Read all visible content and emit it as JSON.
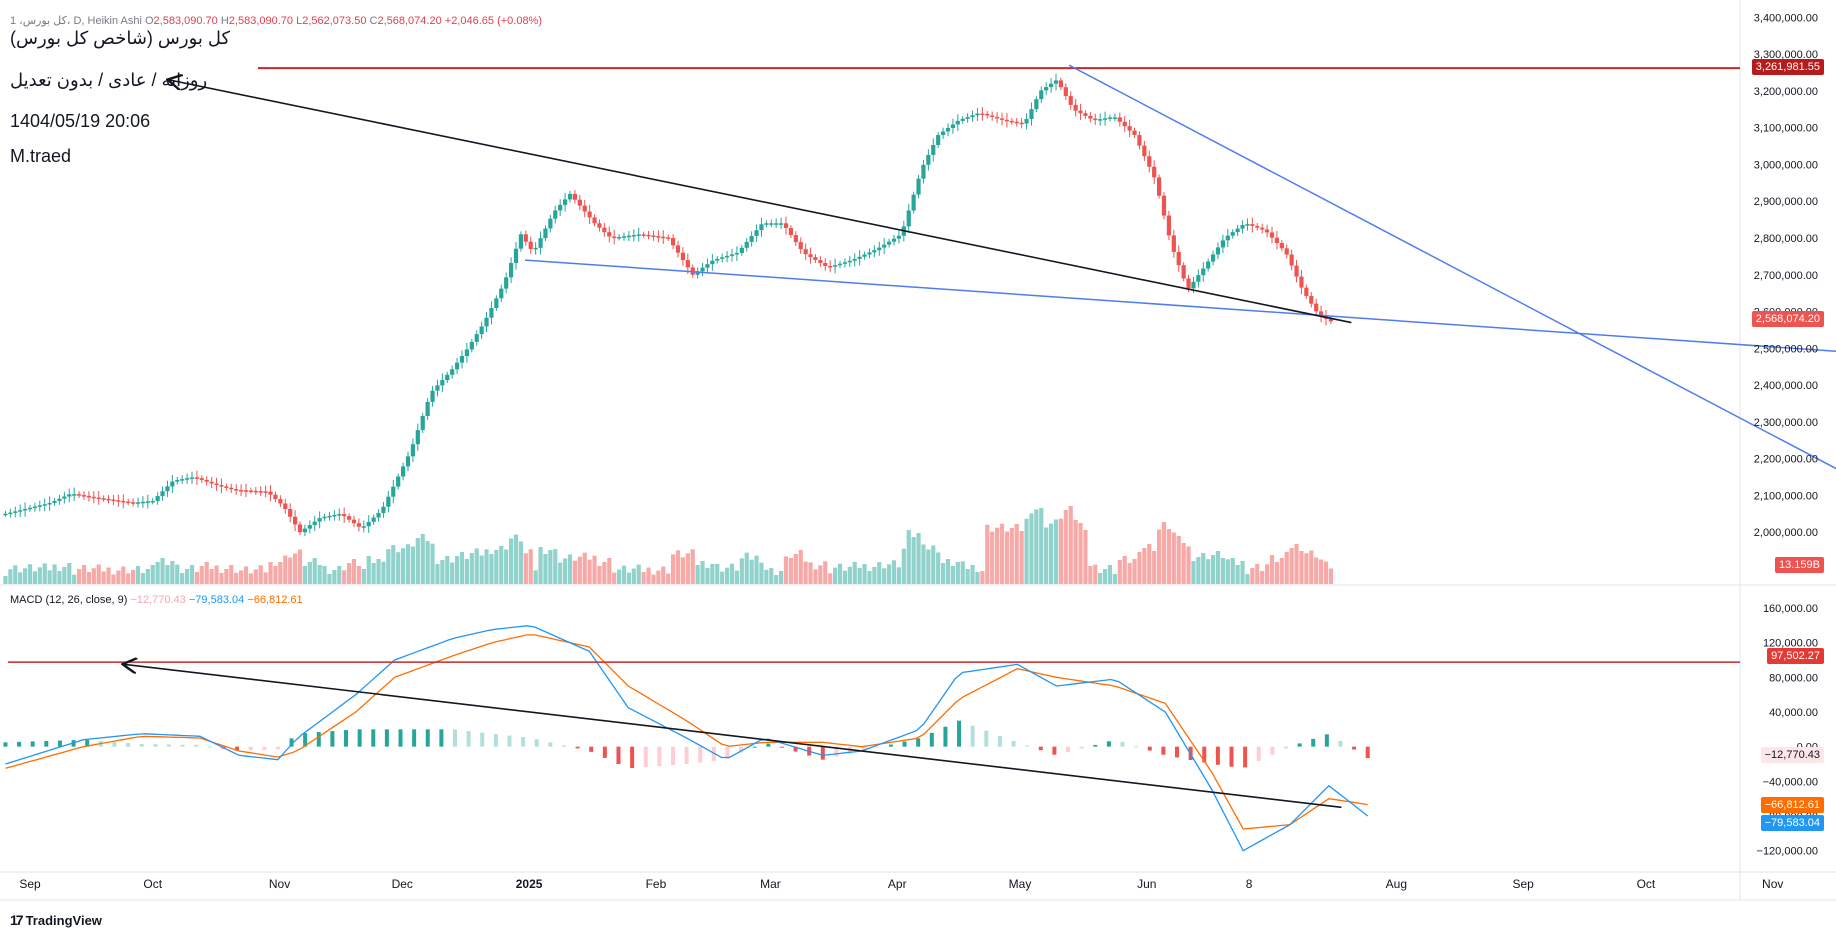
{
  "header": {
    "symbol_line": "1 ،کل بورس، D, Heikin Ashi",
    "open_label": "O",
    "open": "2,583,090.70",
    "high_label": "H",
    "high": "2,583,090.70",
    "low_label": "L",
    "low": "2,562,073.50",
    "close_label": "C",
    "close": "2,568,074.20",
    "change": "+2,046.65 (+0.08%)"
  },
  "annotations": {
    "title": "کل بورس (شاخص کل بورس)",
    "subtitle": "روزانه / عادی / بدون تعدیل",
    "datetime": "1404/05/19 20:06",
    "author": "M.traed"
  },
  "macd_legend": {
    "label": "MACD (12, 26, close, 9)",
    "histogram": "−12,770.43",
    "macd": "−79,583.04",
    "signal": "−66,812.61"
  },
  "badges": {
    "resistance": "3,261,981.55",
    "last_price": "2,568,074.20",
    "volume": "13.159B",
    "macd_level": "97,502.27",
    "hist_value": "−12,770.43",
    "signal_value": "−66,812.61",
    "macd_value": "−79,583.04"
  },
  "brand": "TradingView",
  "colors": {
    "up": "#26a69a",
    "down": "#ef5350",
    "macd": "#2196f3",
    "signal": "#ff6d00",
    "trendline": "#4f7df0",
    "level": "#c62828"
  },
  "chart_data": [
    {
      "type": "candlestick",
      "style": "Heikin Ashi",
      "x_ticks": [
        "Sep",
        "Oct",
        "Nov",
        "Dec",
        "2025",
        "Feb",
        "Mar",
        "Apr",
        "May",
        "Jun",
        "8",
        "Aug",
        "Sep",
        "Oct",
        "Nov"
      ],
      "y_ticks": [
        3400000,
        3300000,
        3200000,
        3100000,
        3000000,
        2900000,
        2800000,
        2700000,
        2600000,
        2500000,
        2400000,
        2300000,
        2200000,
        2100000,
        2000000
      ],
      "ylim": [
        1870000,
        3420000
      ],
      "anchor_closes": [
        [
          "Aug-25",
          2050000
        ],
        [
          "Sep-5",
          2080000
        ],
        [
          "Sep-10",
          2105000
        ],
        [
          "Sep-15",
          2095000
        ],
        [
          "Sep-25",
          2080000
        ],
        [
          "Sep-30",
          2085000
        ],
        [
          "Oct-5",
          2140000
        ],
        [
          "Oct-10",
          2150000
        ],
        [
          "Oct-15",
          2130000
        ],
        [
          "Oct-20",
          2115000
        ],
        [
          "Oct-28",
          2110000
        ],
        [
          "Nov-1",
          2070000
        ],
        [
          "Nov-5",
          2000000
        ],
        [
          "Nov-10",
          2040000
        ],
        [
          "Nov-15",
          2050000
        ],
        [
          "Nov-20",
          2010000
        ],
        [
          "Nov-25",
          2060000
        ],
        [
          "Dec-2",
          2220000
        ],
        [
          "Dec-7",
          2380000
        ],
        [
          "Dec-12",
          2440000
        ],
        [
          "Dec-16",
          2500000
        ],
        [
          "Dec-20",
          2570000
        ],
        [
          "Dec-25",
          2680000
        ],
        [
          "Dec-29",
          2810000
        ],
        [
          "Jan-1",
          2760000
        ],
        [
          "Jan-6",
          2870000
        ],
        [
          "Jan-10",
          2920000
        ],
        [
          "Jan-16",
          2840000
        ],
        [
          "Jan-20",
          2800000
        ],
        [
          "Jan-27",
          2810000
        ],
        [
          "Feb-3",
          2800000
        ],
        [
          "Feb-9",
          2700000
        ],
        [
          "Feb-14",
          2740000
        ],
        [
          "Feb-20",
          2760000
        ],
        [
          "Feb-26",
          2840000
        ],
        [
          "Mar-3",
          2840000
        ],
        [
          "Mar-8",
          2760000
        ],
        [
          "Mar-14",
          2720000
        ],
        [
          "Mar-20",
          2740000
        ],
        [
          "Mar-26",
          2770000
        ],
        [
          "Apr-1",
          2810000
        ],
        [
          "Apr-6",
          2990000
        ],
        [
          "Apr-10",
          3080000
        ],
        [
          "Apr-15",
          3120000
        ],
        [
          "Apr-20",
          3140000
        ],
        [
          "Apr-26",
          3120000
        ],
        [
          "May-1",
          3110000
        ],
        [
          "May-5",
          3200000
        ],
        [
          "May-9",
          3230000
        ],
        [
          "May-13",
          3150000
        ],
        [
          "May-18",
          3120000
        ],
        [
          "May-23",
          3130000
        ],
        [
          "May-28",
          3080000
        ],
        [
          "Jun-2",
          2960000
        ],
        [
          "Jun-6",
          2780000
        ],
        [
          "Jun-10",
          2660000
        ],
        [
          "Jun-14",
          2720000
        ],
        [
          "Jun-19",
          2800000
        ],
        [
          "Jun-24",
          2840000
        ],
        [
          "Jun-29",
          2820000
        ],
        [
          "Jul-4",
          2760000
        ],
        [
          "Jul-8",
          2660000
        ],
        [
          "Jul-12",
          2590000
        ],
        [
          "Jul-16",
          2568074
        ]
      ],
      "last_close": 2568074.2,
      "resistance_level": 3261981.55,
      "trendlines": [
        {
          "from": [
            "Dec-30",
            2740000
          ],
          "to": [
            "Nov-18",
            2490000
          ]
        },
        {
          "from": [
            "May-12",
            3270000
          ],
          "to": [
            "Nov-16",
            2170000
          ]
        }
      ],
      "arrow": {
        "from": [
          "Jul-20",
          2570000
        ],
        "to": [
          "Oct-4",
          3230000
        ]
      }
    },
    {
      "type": "bar",
      "title": "Volume",
      "last_value": "13.159B"
    },
    {
      "type": "line",
      "title": "MACD (12, 26, close, 9)",
      "y_ticks": [
        160000,
        120000,
        80000,
        40000,
        0,
        -40000,
        -80000,
        -120000
      ],
      "ylim": [
        -140000,
        175000
      ],
      "level": 97502.27,
      "series": [
        {
          "name": "MACD",
          "last": -79583.04,
          "anchors": [
            [
              0,
              -20000
            ],
            [
              20,
              8000
            ],
            [
              35,
              15000
            ],
            [
              50,
              12000
            ],
            [
              60,
              -10000
            ],
            [
              70,
              -15000
            ],
            [
              75,
              10000
            ],
            [
              90,
              60000
            ],
            [
              100,
              100000
            ],
            [
              115,
              125000
            ],
            [
              125,
              135000
            ],
            [
              135,
              140000
            ],
            [
              150,
              110000
            ],
            [
              160,
              45000
            ],
            [
              175,
              10000
            ],
            [
              185,
              -15000
            ],
            [
              195,
              10000
            ],
            [
              210,
              -10000
            ],
            [
              220,
              -5000
            ],
            [
              235,
              20000
            ],
            [
              245,
              85000
            ],
            [
              260,
              95000
            ],
            [
              270,
              70000
            ],
            [
              285,
              78000
            ],
            [
              298,
              40000
            ],
            [
              310,
              -50000
            ],
            [
              318,
              -120000
            ],
            [
              330,
              -90000
            ],
            [
              340,
              -45000
            ],
            [
              350,
              -80000
            ]
          ]
        },
        {
          "name": "Signal",
          "last": -66812.61,
          "anchors": [
            [
              0,
              -25000
            ],
            [
              20,
              0
            ],
            [
              35,
              12000
            ],
            [
              50,
              10000
            ],
            [
              60,
              -5000
            ],
            [
              70,
              -12000
            ],
            [
              75,
              -5000
            ],
            [
              90,
              40000
            ],
            [
              100,
              80000
            ],
            [
              115,
              105000
            ],
            [
              125,
              120000
            ],
            [
              135,
              130000
            ],
            [
              150,
              115000
            ],
            [
              160,
              70000
            ],
            [
              175,
              30000
            ],
            [
              185,
              0
            ],
            [
              195,
              5000
            ],
            [
              210,
              5000
            ],
            [
              220,
              0
            ],
            [
              235,
              10000
            ],
            [
              245,
              55000
            ],
            [
              260,
              90000
            ],
            [
              270,
              80000
            ],
            [
              285,
              70000
            ],
            [
              298,
              50000
            ],
            [
              310,
              -30000
            ],
            [
              318,
              -95000
            ],
            [
              330,
              -90000
            ],
            [
              340,
              -60000
            ],
            [
              350,
              -66812
            ]
          ]
        },
        {
          "name": "Histogram",
          "last": -12770.43
        }
      ]
    }
  ]
}
